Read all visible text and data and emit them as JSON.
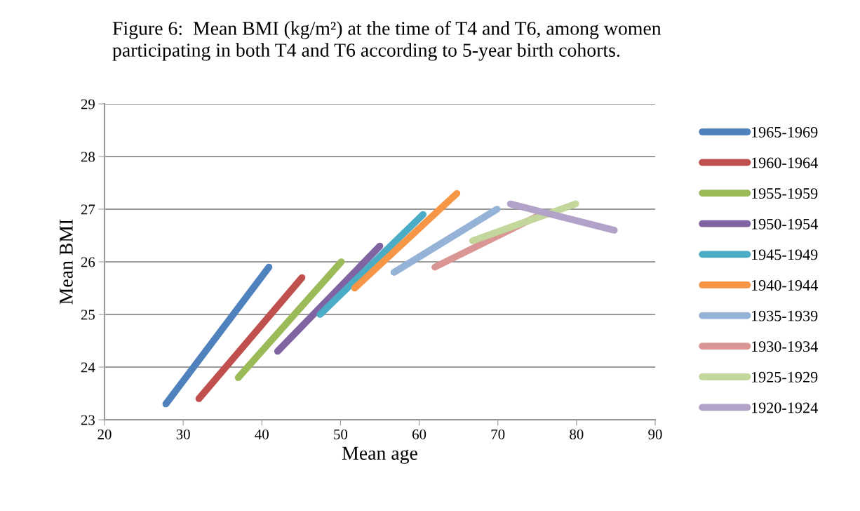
{
  "chart_data": {
    "type": "line",
    "title": "Figure 6:  Mean BMI (kg/m²) at the time of T4 and T6, among women\nparticipating in both T4 and T6 according to 5-year birth cohorts.",
    "xlabel": "Mean age",
    "ylabel": "Mean BMI",
    "xlim": [
      20,
      90
    ],
    "xticks": [
      20,
      30,
      40,
      50,
      60,
      70,
      80,
      90
    ],
    "ylim": [
      23,
      29
    ],
    "yticks": [
      23,
      24,
      25,
      26,
      27,
      28,
      29
    ],
    "grid": "y",
    "legend": "right",
    "marker": "none",
    "line_style": "solid",
    "series": [
      {
        "name": "1965-1969",
        "color": "#4f81bd",
        "x": [
          27.8,
          40.9
        ],
        "values": [
          23.3,
          25.9
        ]
      },
      {
        "name": "1960-1964",
        "color": "#c0504d",
        "x": [
          32.0,
          45.1
        ],
        "values": [
          23.4,
          25.7
        ]
      },
      {
        "name": "1955-1959",
        "color": "#9bbb59",
        "x": [
          37.0,
          50.1
        ],
        "values": [
          23.8,
          26.0
        ]
      },
      {
        "name": "1950-1954",
        "color": "#8064a2",
        "x": [
          42.0,
          55.0
        ],
        "values": [
          24.3,
          26.3
        ]
      },
      {
        "name": "1945-1949",
        "color": "#4bacc6",
        "x": [
          47.4,
          60.5
        ],
        "values": [
          25.0,
          26.9
        ]
      },
      {
        "name": "1940-1944",
        "color": "#f79646",
        "x": [
          51.8,
          64.8
        ],
        "values": [
          25.5,
          27.3
        ]
      },
      {
        "name": "1935-1939",
        "color": "#95b3d7",
        "x": [
          56.8,
          69.9
        ],
        "values": [
          25.8,
          27.0
        ]
      },
      {
        "name": "1930-1934",
        "color": "#d99694",
        "x": [
          62.0,
          75.5
        ],
        "values": [
          25.9,
          26.9
        ]
      },
      {
        "name": "1925-1929",
        "color": "#c3d69b",
        "x": [
          66.8,
          79.9
        ],
        "values": [
          26.4,
          27.1
        ]
      },
      {
        "name": "1920-1924",
        "color": "#b3a2c7",
        "x": [
          71.6,
          84.8
        ],
        "values": [
          27.1,
          26.6
        ]
      }
    ]
  }
}
